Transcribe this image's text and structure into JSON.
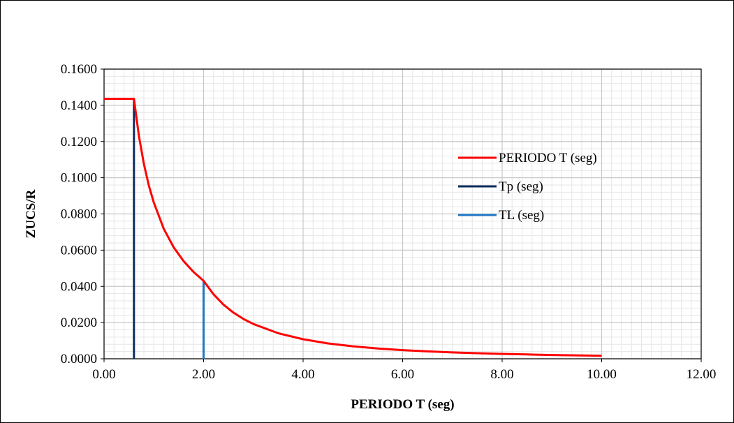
{
  "chart_data": {
    "type": "line",
    "title": "",
    "xlabel": "PERIODO T (seg)",
    "ylabel": "ZUCS/R",
    "xlim": [
      0,
      12
    ],
    "ylim": [
      0,
      0.16
    ],
    "x_ticks": [
      "0.00",
      "2.00",
      "4.00",
      "6.00",
      "8.00",
      "10.00",
      "12.00"
    ],
    "y_ticks": [
      "0.0000",
      "0.0200",
      "0.0400",
      "0.0600",
      "0.0800",
      "0.1000",
      "0.1200",
      "0.1400",
      "0.1600"
    ],
    "grid": true,
    "legend_position": "right",
    "series": [
      {
        "name": "PERIODO T (seg)",
        "color": "#ff0000",
        "x": [
          0,
          0.1,
          0.2,
          0.3,
          0.4,
          0.5,
          0.6,
          0.7,
          0.8,
          0.9,
          1.0,
          1.2,
          1.4,
          1.6,
          1.8,
          2.0,
          2.2,
          2.4,
          2.6,
          2.8,
          3.0,
          3.5,
          4.0,
          4.5,
          5.0,
          5.5,
          6.0,
          6.5,
          7.0,
          7.5,
          8.0,
          8.5,
          9.0,
          9.5,
          10.0
        ],
        "y": [
          0.1436,
          0.1436,
          0.1436,
          0.1436,
          0.1436,
          0.1436,
          0.1436,
          0.1231,
          0.1077,
          0.0957,
          0.0862,
          0.0718,
          0.0615,
          0.0539,
          0.0479,
          0.0431,
          0.0356,
          0.0299,
          0.0255,
          0.022,
          0.0192,
          0.0141,
          0.0108,
          0.0085,
          0.0069,
          0.0057,
          0.0048,
          0.0041,
          0.0035,
          0.0031,
          0.0027,
          0.0024,
          0.0021,
          0.0019,
          0.0017
        ]
      },
      {
        "name": "Tp (seg)",
        "color": "#0d2d5e",
        "x": [
          0.6,
          0.6
        ],
        "y": [
          0,
          0.1436
        ]
      },
      {
        "name": "TL (seg)",
        "color": "#1f77c4",
        "x": [
          2.0,
          2.0
        ],
        "y": [
          0,
          0.0431
        ]
      }
    ]
  }
}
